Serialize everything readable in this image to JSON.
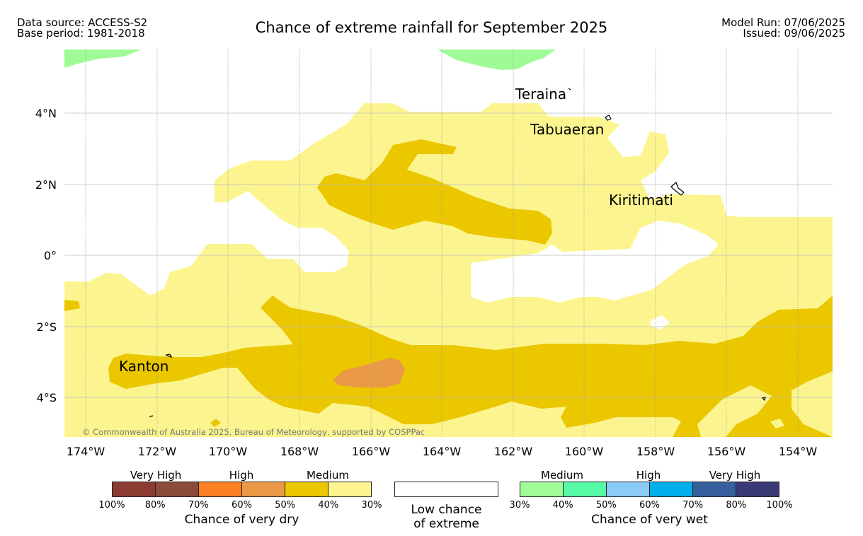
{
  "header": {
    "data_source": "Data source: ACCESS-S2",
    "base_period": "Base period: 1981-2018",
    "title": "Chance of extreme rainfall for September 2025",
    "model_run": "Model Run: 07/06/2025",
    "issued": "Issued: 09/06/2025"
  },
  "map": {
    "lon_labels": [
      "174°W",
      "172°W",
      "170°W",
      "168°W",
      "166°W",
      "164°W",
      "162°W",
      "160°W",
      "158°W",
      "156°W",
      "154°W"
    ],
    "lat_labels": [
      "4°N",
      "2°N",
      "0°",
      "2°S",
      "4°S"
    ],
    "places": [
      "Teraina",
      "Tabuaeran",
      "Kiritimati",
      "Kanton"
    ],
    "copyright": "© Commonwealth of Australia 2025, Bureau of Meteorology, supported by COSPPac",
    "colors": {
      "medium_dry": "#fcf58f",
      "high_dry_50": "#ebc700",
      "high_dry_60": "#ea9a46",
      "medium_wet": "#9ffb96"
    }
  },
  "legend": {
    "dry": {
      "headers": [
        "Very High",
        "High",
        "Medium"
      ],
      "ticks": [
        "100%",
        "80%",
        "70%",
        "60%",
        "50%",
        "40%",
        "30%"
      ],
      "colors": [
        "#8b3b30",
        "#8b4b3a",
        "#fc7f22",
        "#ea9a46",
        "#ebc700",
        "#fcf58f"
      ],
      "label": "Chance of very dry"
    },
    "low": {
      "label_line1": "Low chance",
      "label_line2": "of extreme"
    },
    "wet": {
      "headers": [
        "Medium",
        "High",
        "Very High"
      ],
      "ticks": [
        "30%",
        "40%",
        "50%",
        "60%",
        "70%",
        "80%",
        "100%"
      ],
      "colors": [
        "#9ffb96",
        "#57f9a6",
        "#8bcbf7",
        "#00b0ea",
        "#365f9e",
        "#3b3a78"
      ],
      "label": "Chance of very wet"
    }
  }
}
